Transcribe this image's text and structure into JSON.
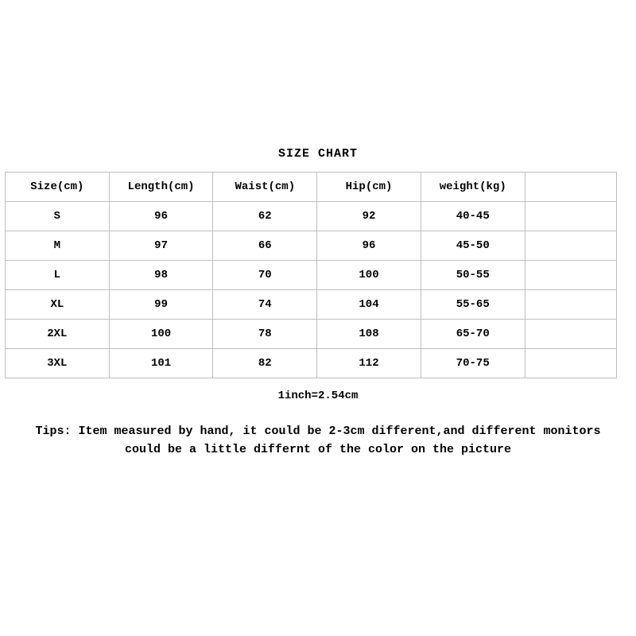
{
  "title": "SIZE CHART",
  "border_color": "#bfbfbf",
  "text_color": "#000000",
  "background_color": "#ffffff",
  "title_fontsize": 15,
  "cell_fontsize": 14,
  "tips_fontsize": 15,
  "columns": [
    "Size(cm)",
    "Length(cm)",
    "Waist(cm)",
    "Hip(cm)",
    "weight(kg)",
    ""
  ],
  "rows": [
    [
      "S",
      "96",
      "62",
      "92",
      "40-45",
      ""
    ],
    [
      "M",
      "97",
      "66",
      "96",
      "45-50",
      ""
    ],
    [
      "L",
      "98",
      "70",
      "100",
      "50-55",
      ""
    ],
    [
      "XL",
      "99",
      "74",
      "104",
      "55-65",
      ""
    ],
    [
      "2XL",
      "100",
      "78",
      "108",
      "65-70",
      ""
    ],
    [
      "3XL",
      "101",
      "82",
      "112",
      "70-75",
      ""
    ]
  ],
  "conversion": "1inch=2.54cm",
  "tips": "Tips: Item measured by hand, it could be 2-3cm different,and different monitors could be a little differnt of the color on the picture"
}
